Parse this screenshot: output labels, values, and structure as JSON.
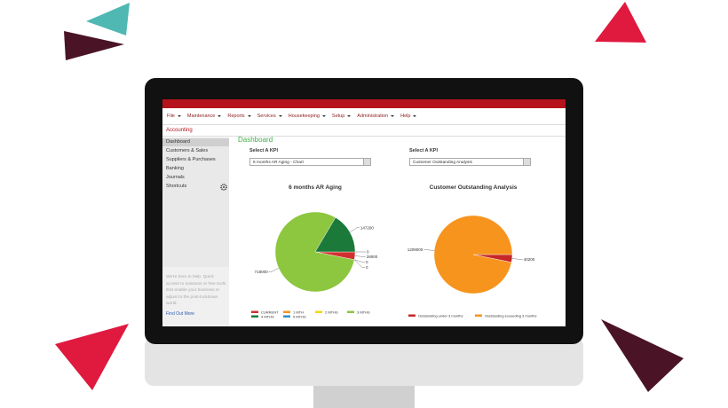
{
  "menu": {
    "items": [
      "File",
      "Maintenance",
      "Reports",
      "Services",
      "Housekeeping",
      "Setup",
      "Administration",
      "Help"
    ]
  },
  "breadcrumb": "Accounting",
  "sidebar": {
    "items": [
      "Dashboard",
      "Customers & Sales",
      "Suppliers & Purchases",
      "Banking",
      "Journals",
      "Shortcuts"
    ],
    "help_text": "We're here to help. Quick access to solutions or free tools that enable your business to adjust to the post-lockdown world.",
    "link": "Find Out More"
  },
  "dashboard": {
    "title": "Dashboard"
  },
  "kpi_panels": [
    {
      "label": "Select A KPI",
      "selected": "6 months AR Aging - Chart"
    },
    {
      "label": "Select A KPI",
      "selected": "Customer Outstanding Analysis"
    }
  ],
  "chart_data": [
    {
      "type": "pie",
      "title": "6 months AR Aging",
      "categories": [
        "CURRENT",
        "1 MTH",
        "2 MTHS",
        "3 MTHS",
        "4 MTHS",
        "5 MTHS"
      ],
      "values": [
        28000,
        0,
        0,
        718000,
        147200,
        0
      ],
      "colors": [
        "#d32f2f",
        "#f7941d",
        "#f5d90a",
        "#8dc63f",
        "#1b7a3a",
        "#2f8fc6"
      ]
    },
    {
      "type": "pie",
      "title": "Customer Outstanding Analysis",
      "categories": [
        "Outstanding under 3 months",
        "Outstanding exceeding 3 months"
      ],
      "values": [
        40200,
        1209000
      ],
      "colors": [
        "#c62828",
        "#f7941d"
      ]
    }
  ]
}
